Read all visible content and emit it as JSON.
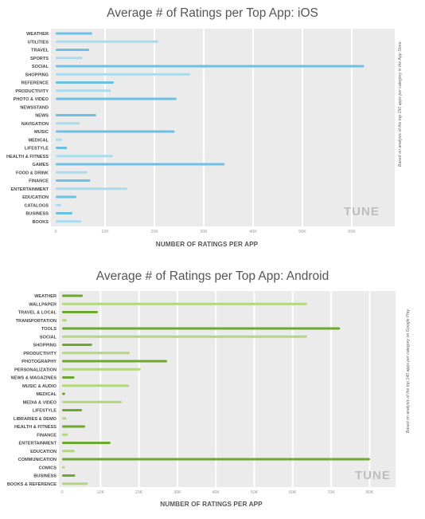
{
  "charts": [
    {
      "title": "Average # of Ratings per Top App: iOS",
      "xlabel": "NUMBER OF RATINGS PER APP",
      "note": "Based on analysis of the top 150 apps per category in the App Store.",
      "logo": "TUNE",
      "colors": {
        "dark": "#6ec0e3",
        "light": "#a9dbef"
      },
      "tick_labels": [
        "0",
        "10K",
        "20K",
        "30K",
        "40K",
        "50K",
        "60K"
      ],
      "categories": [
        "WEATHER",
        "UTILITIES",
        "TRAVEL",
        "SPORTS",
        "SOCIAL",
        "SHOPPING",
        "REFERENCE",
        "PRODUCTIVITY",
        "PHOTO & VIDEO",
        "NEWSSTAND",
        "NEWS",
        "NAVIGATION",
        "MUSIC",
        "MEDICAL",
        "LIFESTYLE",
        "HEALTH & FITNESS",
        "GAMES",
        "FOOD & DRINK",
        "FINANCE",
        "ENTERTAINMENT",
        "EDUCATION",
        "CATALOGS",
        "BUSINESS",
        "BOOKS"
      ],
      "values": [
        7400,
        20800,
        6800,
        5400,
        62500,
        27200,
        11800,
        11200,
        24500,
        0,
        8200,
        4900,
        24100,
        1300,
        2300,
        11600,
        34200,
        6400,
        7000,
        14500,
        4200,
        1100,
        3400,
        5200
      ]
    },
    {
      "title": "Average # of Ratings per Top App: Android",
      "xlabel": "NUMBER OF RATINGS PER APP",
      "note": "Based on analysis of the top 240 apps per category on Google Play.",
      "logo": "TUNE",
      "colors": {
        "dark": "#6ea833",
        "light": "#b3d67e"
      },
      "tick_labels": [
        "0",
        "10K",
        "20K",
        "30K",
        "40K",
        "50K",
        "60K",
        "70K",
        "80K"
      ],
      "categories": [
        "WEATHER",
        "WALLPAPER",
        "TRAVEL & LOCAL",
        "TRANSPORTATION",
        "TOOLS",
        "SOCIAL",
        "SHOPPING",
        "PRODUCTIVITY",
        "PHOTOGRAPHY",
        "PERSONALIZATION",
        "NEWS & MAGAZINES",
        "MUSIC & AUDIO",
        "MEDICAL",
        "MEDIA & VIDEO",
        "LIFESTYLE",
        "LIBRARIES & DEMO",
        "HEALTH & FITNESS",
        "FINANCE",
        "ENTERTAINMENT",
        "EDUCATION",
        "COMMUNICATION",
        "COMICS",
        "BUSINESS",
        "BOOKS & REFERENCE"
      ],
      "values": [
        5400,
        63700,
        9300,
        1200,
        72300,
        63700,
        7800,
        17600,
        27300,
        20500,
        3200,
        17400,
        800,
        15500,
        5200,
        1100,
        6000,
        1500,
        12600,
        3300,
        80100,
        700,
        3400,
        6700
      ]
    }
  ],
  "chart_data": [
    {
      "type": "bar",
      "title": "Average # of Ratings per Top App: iOS",
      "xlabel": "NUMBER OF RATINGS PER APP",
      "xlim": [
        0,
        68000
      ],
      "categories": [
        "WEATHER",
        "UTILITIES",
        "TRAVEL",
        "SPORTS",
        "SOCIAL",
        "SHOPPING",
        "REFERENCE",
        "PRODUCTIVITY",
        "PHOTO & VIDEO",
        "NEWSSTAND",
        "NEWS",
        "NAVIGATION",
        "MUSIC",
        "MEDICAL",
        "LIFESTYLE",
        "HEALTH & FITNESS",
        "GAMES",
        "FOOD & DRINK",
        "FINANCE",
        "ENTERTAINMENT",
        "EDUCATION",
        "CATALOGS",
        "BUSINESS",
        "BOOKS"
      ],
      "values": [
        7400,
        20800,
        6800,
        5400,
        62500,
        27200,
        11800,
        11200,
        24500,
        0,
        8200,
        4900,
        24100,
        1300,
        2300,
        11600,
        34200,
        6400,
        7000,
        14500,
        4200,
        1100,
        3400,
        5200
      ],
      "grid": true
    },
    {
      "type": "bar",
      "title": "Average # of Ratings per Top App: Android",
      "xlabel": "NUMBER OF RATINGS PER APP",
      "xlim": [
        0,
        86000
      ],
      "categories": [
        "WEATHER",
        "WALLPAPER",
        "TRAVEL & LOCAL",
        "TRANSPORTATION",
        "TOOLS",
        "SOCIAL",
        "SHOPPING",
        "PRODUCTIVITY",
        "PHOTOGRAPHY",
        "PERSONALIZATION",
        "NEWS & MAGAZINES",
        "MUSIC & AUDIO",
        "MEDICAL",
        "MEDIA & VIDEO",
        "LIFESTYLE",
        "LIBRARIES & DEMO",
        "HEALTH & FITNESS",
        "FINANCE",
        "ENTERTAINMENT",
        "EDUCATION",
        "COMMUNICATION",
        "COMICS",
        "BUSINESS",
        "BOOKS & REFERENCE"
      ],
      "values": [
        5400,
        63700,
        9300,
        1200,
        72300,
        63700,
        7800,
        17600,
        27300,
        20500,
        3200,
        17400,
        800,
        15500,
        5200,
        1100,
        6000,
        1500,
        12600,
        3300,
        80100,
        700,
        3400,
        6700
      ],
      "grid": true
    }
  ]
}
